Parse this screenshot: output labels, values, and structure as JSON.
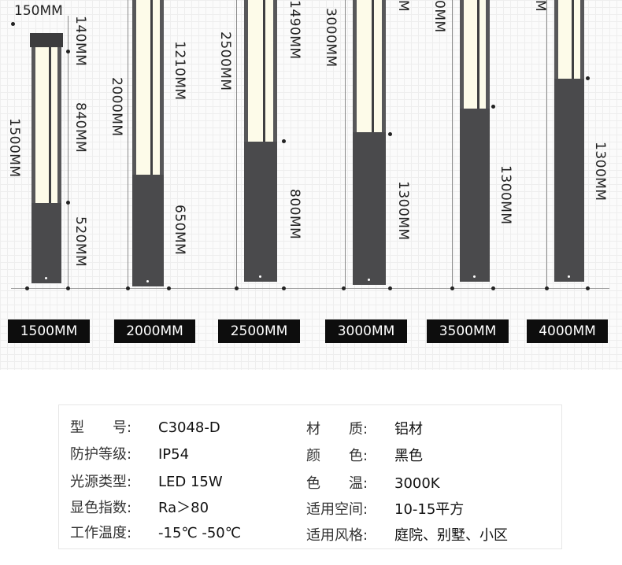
{
  "dimension_labels": {
    "p1_top": "150MM",
    "p1_cap": "140MM",
    "p1_light": "840MM",
    "p1_total": "1500MM",
    "p1_body": "520MM",
    "p2_total": "2000MM",
    "p2_light": "1210MM",
    "p2_body": "650MM",
    "p3_total": "2500MM",
    "p3_light": "1490MM",
    "p3_body": "800MM",
    "p4_total": "3000MM",
    "p4_top": "M",
    "p4_body": "1300MM",
    "p5_top": "0MM",
    "p5_body": "1300MM",
    "p6_top": "M",
    "p6_body": "1300MM"
  },
  "size_labels": [
    "1500MM",
    "2000MM",
    "2500MM",
    "3000MM",
    "3500MM",
    "4000MM"
  ],
  "specs": {
    "left": [
      {
        "key": "型　　号:",
        "value": "C3048-D"
      },
      {
        "key": "防护等级:",
        "value": "IP54"
      },
      {
        "key": "光源类型:",
        "value": "LED 15W"
      },
      {
        "key": "显色指数:",
        "value": "Ra＞80"
      },
      {
        "key": "工作温度:",
        "value": "-15℃ -50℃"
      }
    ],
    "right": [
      {
        "key": "材　　质:",
        "value": "铝材"
      },
      {
        "key": "颜　　色:",
        "value": "黑色"
      },
      {
        "key": "色　　温:",
        "value": "3000K"
      },
      {
        "key": "适用空间:",
        "value": "10-15平方"
      },
      {
        "key": "适用风格:",
        "value": "庭院、别墅、小区"
      }
    ]
  },
  "colors": {
    "pole": "#4a4a4c",
    "light": "#fdfbe9",
    "label_bg": "#0d0d0d"
  }
}
